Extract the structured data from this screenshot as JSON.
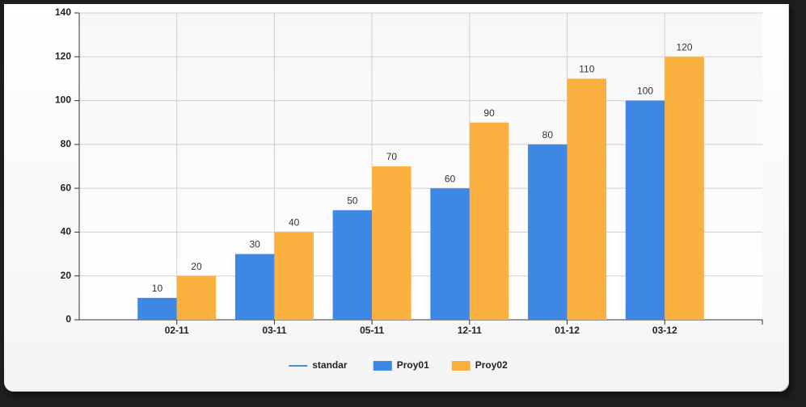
{
  "chart_data": {
    "type": "bar",
    "categories": [
      "02-11",
      "03-11",
      "05-11",
      "12-11",
      "01-12",
      "03-12"
    ],
    "series": [
      {
        "name": "standar",
        "type": "line",
        "color": "#4a90d9",
        "values": [
          null,
          null,
          null,
          null,
          null,
          null
        ]
      },
      {
        "name": "Proy01",
        "color": "#3f87e5",
        "values": [
          10,
          30,
          50,
          60,
          80,
          100
        ]
      },
      {
        "name": "Proy02",
        "color": "#fbb13f",
        "values": [
          20,
          40,
          70,
          90,
          110,
          120
        ]
      }
    ],
    "ylim": [
      0,
      140
    ],
    "yticks": [
      0,
      20,
      40,
      60,
      80,
      100,
      120,
      140
    ],
    "grid": true,
    "legend": "bottom"
  }
}
